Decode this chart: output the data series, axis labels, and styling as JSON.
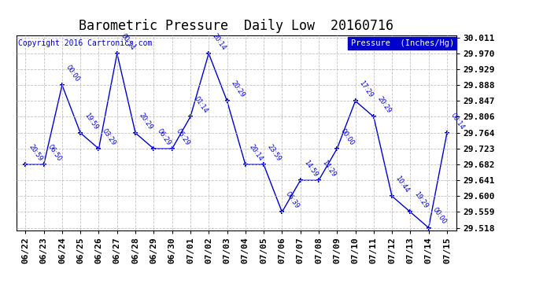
{
  "title": "Barometric Pressure  Daily Low  20160716",
  "copyright": "Copyright 2016 Cartronics.com",
  "legend_label": "Pressure  (Inches/Hg)",
  "dates": [
    "06/22",
    "06/23",
    "06/24",
    "06/25",
    "06/26",
    "06/27",
    "06/28",
    "06/29",
    "06/30",
    "07/01",
    "07/02",
    "07/03",
    "07/04",
    "07/05",
    "07/06",
    "07/07",
    "07/08",
    "07/09",
    "07/10",
    "07/11",
    "07/12",
    "07/13",
    "07/14",
    "07/15"
  ],
  "values": [
    29.682,
    29.682,
    29.888,
    29.764,
    29.723,
    29.97,
    29.764,
    29.723,
    29.723,
    29.806,
    29.97,
    29.847,
    29.682,
    29.682,
    29.559,
    29.641,
    29.641,
    29.723,
    29.847,
    29.806,
    29.6,
    29.559,
    29.518,
    29.764
  ],
  "time_labels": [
    "20:59",
    "06:50",
    "00:00",
    "19:59",
    "03:29",
    "00:14",
    "20:29",
    "06:29",
    "06:29",
    "01:14",
    "20:14",
    "20:29",
    "20:14",
    "23:59",
    "06:39",
    "14:59",
    "14:29",
    "00:00",
    "17:29",
    "20:29",
    "10:44",
    "19:29",
    "00:00",
    "00:14"
  ],
  "line_color": "#0000cc",
  "bg_color": "#ffffff",
  "grid_color": "#bbbbbb",
  "title_color": "#000000",
  "tick_color": "#000000",
  "label_color": "#0000cc",
  "legend_bg": "#0000cc",
  "legend_fg": "#ffffff",
  "copyright_color": "#0000cc",
  "ylim_min": 29.518,
  "ylim_max": 30.011,
  "yticks": [
    30.011,
    29.97,
    29.929,
    29.888,
    29.847,
    29.806,
    29.764,
    29.723,
    29.682,
    29.641,
    29.6,
    29.559,
    29.518
  ],
  "figwidth": 6.9,
  "figheight": 3.75,
  "dpi": 100
}
